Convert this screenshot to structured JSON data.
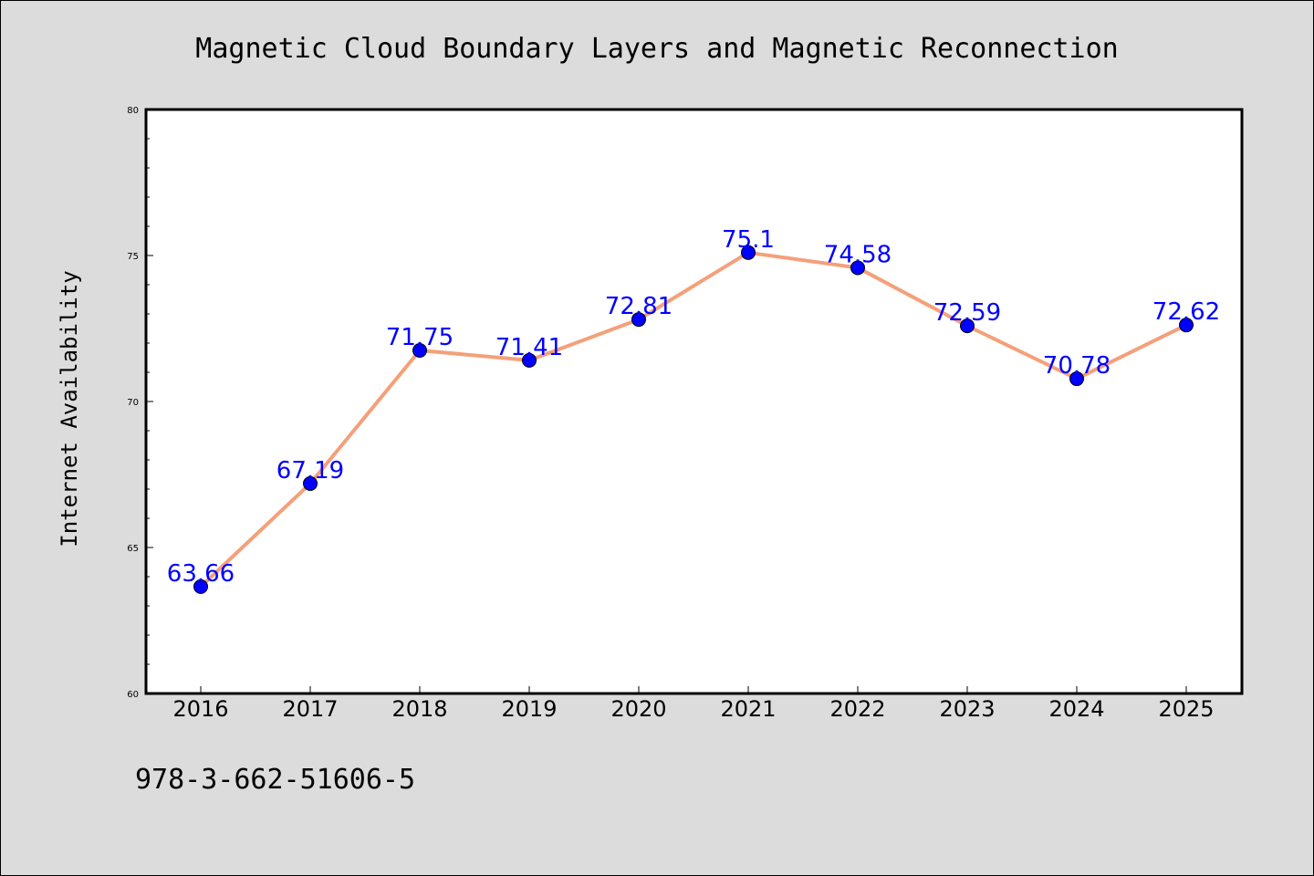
{
  "chart_data": {
    "type": "line",
    "title": "Magnetic Cloud Boundary Layers and Magnetic Reconnection",
    "xlabel": "",
    "ylabel": "Internet Availability",
    "categories": [
      "2016",
      "2017",
      "2018",
      "2019",
      "2020",
      "2021",
      "2022",
      "2023",
      "2024",
      "2025"
    ],
    "series": [
      {
        "values": [
          63.66,
          67.19,
          71.75,
          71.41,
          72.81,
          75.1,
          74.58,
          72.59,
          70.78,
          72.62
        ],
        "labels": [
          "63.66",
          "67.19",
          "71.75",
          "71.41",
          "72.81",
          "75.1",
          "74.58",
          "72.59",
          "70.78",
          "72.62"
        ],
        "line_color": "#f4a07a",
        "marker_color": "#0000ff"
      }
    ],
    "ylim": [
      60,
      80
    ],
    "yticks": [
      "60",
      "65",
      "70",
      "75",
      "80"
    ],
    "grid": false,
    "legend": "none"
  },
  "footer_text": "978-3-662-51606-5",
  "colors": {
    "background": "#dcdcdc",
    "plot_background": "#ffffff",
    "data_label": "#0000ff"
  }
}
